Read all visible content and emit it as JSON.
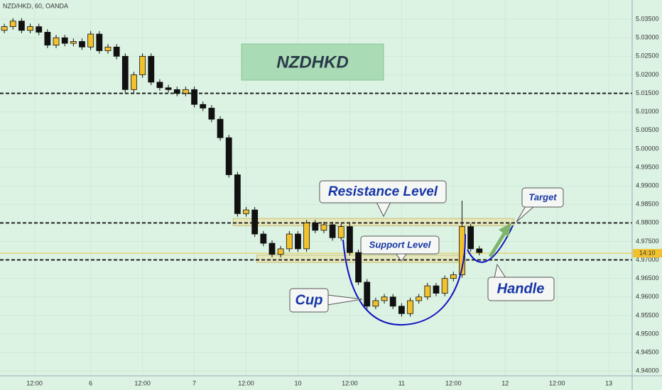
{
  "chart_data": {
    "type": "candlestick",
    "header": "NZD/HKD, 60, OANDA",
    "title": "NZDHKD",
    "annotations": {
      "resistance": "Resistance Level",
      "support": "Support Level",
      "cup": "Cup",
      "handle": "Handle",
      "target": "Target"
    },
    "x": [
      1,
      3,
      5,
      7,
      9,
      11,
      13,
      15,
      17,
      19,
      21,
      23,
      25,
      27,
      29,
      31,
      33,
      35,
      37,
      39,
      41,
      43,
      45,
      47,
      49,
      51,
      53,
      55,
      57,
      59,
      61,
      63,
      65,
      67,
      69,
      71,
      73,
      75,
      77,
      79,
      81,
      83,
      85,
      87,
      89,
      91,
      93,
      95,
      97,
      99,
      101,
      103,
      105,
      107,
      109,
      111
    ],
    "open": [
      5.032,
      5.033,
      5.0345,
      5.032,
      5.033,
      5.0315,
      5.028,
      5.03,
      5.0285,
      5.029,
      5.0275,
      5.031,
      5.0265,
      5.0275,
      5.025,
      5.016,
      5.02,
      5.025,
      5.018,
      5.0165,
      5.016,
      5.015,
      5.016,
      5.012,
      5.011,
      5.008,
      5.003,
      4.993,
      4.9825,
      4.9835,
      4.977,
      4.9745,
      4.9715,
      4.973,
      4.977,
      4.973,
      4.98,
      4.978,
      4.9795,
      4.976,
      4.979,
      4.972,
      4.964,
      4.9575,
      4.959,
      4.96,
      4.9575,
      4.9555,
      4.959,
      4.96,
      4.963,
      4.961,
      4.965,
      4.966,
      4.979,
      4.973
    ],
    "high": [
      5.0338,
      5.0353,
      5.0353,
      5.0338,
      5.0338,
      5.0323,
      5.0308,
      5.0308,
      5.0298,
      5.0298,
      5.0318,
      5.0318,
      5.0283,
      5.0283,
      5.0258,
      5.0208,
      5.0258,
      5.0258,
      5.0188,
      5.0173,
      5.0168,
      5.0168,
      5.0168,
      5.0128,
      5.0118,
      5.0088,
      5.0038,
      4.9938,
      4.9843,
      4.9843,
      4.9778,
      4.9753,
      4.9738,
      4.9778,
      4.9778,
      4.9808,
      4.9808,
      4.9803,
      4.9803,
      4.9798,
      4.9798,
      4.9728,
      4.9648,
      4.9598,
      4.9608,
      4.9608,
      4.9583,
      4.9598,
      4.9608,
      4.9638,
      4.9638,
      4.9658,
      4.9668,
      4.986,
      4.9798,
      4.9738
    ],
    "low": [
      5.0312,
      5.0322,
      5.0312,
      5.0312,
      5.0307,
      5.0272,
      5.0272,
      5.0277,
      5.0277,
      5.0267,
      5.0267,
      5.0257,
      5.0257,
      5.0242,
      5.0152,
      5.0152,
      5.0192,
      5.0172,
      5.0157,
      5.0152,
      5.0142,
      5.0142,
      5.0112,
      5.0102,
      5.0072,
      5.0022,
      4.9922,
      4.9817,
      4.9817,
      4.9762,
      4.9737,
      4.9707,
      4.9707,
      4.9722,
      4.9722,
      4.9722,
      4.9772,
      4.9772,
      4.9752,
      4.9752,
      4.9712,
      4.9632,
      4.9567,
      4.9567,
      4.9582,
      4.9567,
      4.9547,
      4.9547,
      4.9582,
      4.9592,
      4.9602,
      4.9602,
      4.9642,
      4.9652,
      4.9722,
      4.9712
    ],
    "close": [
      5.033,
      5.0345,
      5.032,
      5.033,
      5.0315,
      5.028,
      5.03,
      5.0285,
      5.029,
      5.0275,
      5.031,
      5.0265,
      5.0275,
      5.025,
      5.016,
      5.02,
      5.025,
      5.018,
      5.0165,
      5.016,
      5.015,
      5.016,
      5.012,
      5.011,
      5.008,
      5.003,
      4.993,
      4.9825,
      4.9835,
      4.977,
      4.9745,
      4.9715,
      4.973,
      4.977,
      4.973,
      4.98,
      4.978,
      4.9795,
      4.976,
      4.979,
      4.972,
      4.964,
      4.9575,
      4.959,
      4.96,
      4.9575,
      4.9555,
      4.959,
      4.96,
      4.963,
      4.961,
      4.965,
      4.966,
      4.979,
      4.973,
      4.972
    ],
    "up_color": "#f2c12e",
    "down_color": "#111111",
    "levels": [
      5.015,
      4.98,
      4.97
    ],
    "resistance_zone": {
      "y": [
        4.9792,
        4.9812
      ],
      "x": [
        54,
        119
      ]
    },
    "support_zone": {
      "y": [
        4.9693,
        4.9713
      ],
      "x": [
        59.5,
        107
      ]
    },
    "price_tag": {
      "value": 4.9718,
      "label": "14:10"
    },
    "xlim": [
      0,
      146.4
    ],
    "ylim": [
      4.9387,
      5.0402
    ],
    "xticks": [
      {
        "value": 8,
        "label": "12:00"
      },
      {
        "value": 21,
        "label": "6"
      },
      {
        "value": 33,
        "label": "12:00"
      },
      {
        "value": 45,
        "label": "7"
      },
      {
        "value": 57,
        "label": "12:00"
      },
      {
        "value": 69,
        "label": "10"
      },
      {
        "value": 81,
        "label": "12:00"
      },
      {
        "value": 93,
        "label": "11"
      },
      {
        "value": 105,
        "label": "12:00"
      },
      {
        "value": 117,
        "label": "12"
      },
      {
        "value": 129,
        "label": "12:00"
      },
      {
        "value": 141,
        "label": "13"
      }
    ],
    "yticks": [
      {
        "value": 4.94,
        "label": "4.94000"
      },
      {
        "value": 4.945,
        "label": "4.94500"
      },
      {
        "value": 4.95,
        "label": "4.95000"
      },
      {
        "value": 4.955,
        "label": "4.95500"
      },
      {
        "value": 4.96,
        "label": "4.96000"
      },
      {
        "value": 4.965,
        "label": "4.96500"
      },
      {
        "value": 4.97,
        "label": "4.97000"
      },
      {
        "value": 4.975,
        "label": "4.97500"
      },
      {
        "value": 4.98,
        "label": "4.98000"
      },
      {
        "value": 4.985,
        "label": "4.98500"
      },
      {
        "value": 4.99,
        "label": "4.99000"
      },
      {
        "value": 4.995,
        "label": "4.99500"
      },
      {
        "value": 5.0,
        "label": "5.00000"
      },
      {
        "value": 5.005,
        "label": "5.00500"
      },
      {
        "value": 5.01,
        "label": "5.01000"
      },
      {
        "value": 5.015,
        "label": "5.01500"
      },
      {
        "value": 5.02,
        "label": "5.02000"
      },
      {
        "value": 5.025,
        "label": "5.02500"
      },
      {
        "value": 5.03,
        "label": "5.03000"
      },
      {
        "value": 5.035,
        "label": "5.03500"
      }
    ],
    "grid": true
  }
}
